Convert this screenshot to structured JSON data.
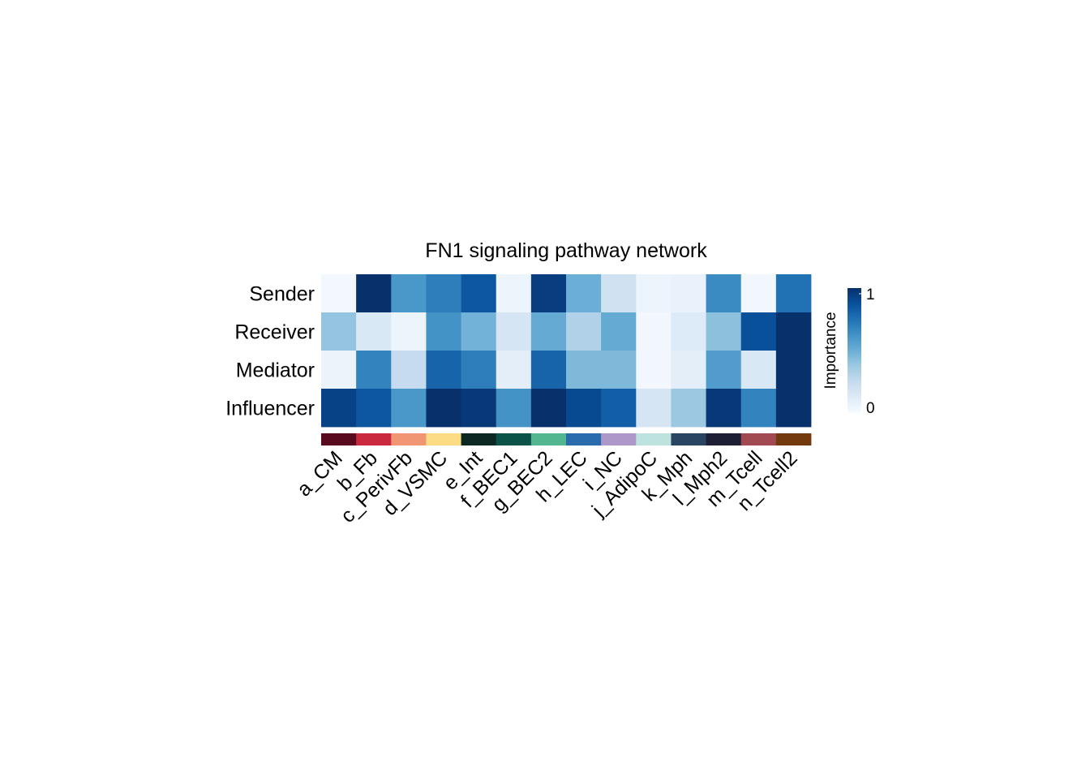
{
  "chart_data": {
    "type": "heatmap",
    "title": "FN1 signaling pathway network",
    "rows": [
      "Sender",
      "Receiver",
      "Mediator",
      "Influencer"
    ],
    "columns": [
      "a_CM",
      "b_Fb",
      "c_PerivFb",
      "d_VSMC",
      "e_Int",
      "f_BEC1",
      "g_BEC2",
      "h_LEC",
      "i_NC",
      "j_AdipoC",
      "k_Mph",
      "l_Mph2",
      "m_Tcell",
      "n_Tcell2"
    ],
    "values": [
      [
        0.02,
        1.0,
        0.6,
        0.7,
        0.85,
        0.05,
        0.95,
        0.5,
        0.2,
        0.05,
        0.07,
        0.65,
        0.03,
        0.75
      ],
      [
        0.4,
        0.15,
        0.05,
        0.62,
        0.48,
        0.17,
        0.52,
        0.32,
        0.52,
        0.03,
        0.13,
        0.42,
        0.88,
        1.0
      ],
      [
        0.06,
        0.68,
        0.25,
        0.8,
        0.7,
        0.1,
        0.8,
        0.45,
        0.45,
        0.03,
        0.1,
        0.58,
        0.15,
        1.0
      ],
      [
        0.93,
        0.85,
        0.6,
        1.0,
        0.97,
        0.62,
        1.0,
        0.9,
        0.82,
        0.17,
        0.38,
        0.97,
        0.68,
        1.0
      ]
    ],
    "group_colors": [
      "#5A0A1F",
      "#C9283E",
      "#F09673",
      "#FCDD83",
      "#0B2922",
      "#0B5348",
      "#52B690",
      "#2A6BAE",
      "#AE98CA",
      "#BEE2DD",
      "#2A4562",
      "#1E1E35",
      "#A24A52",
      "#733A0E"
    ],
    "colorscale": [
      "#F7FBFF",
      "#DEEBF7",
      "#C6DBEF",
      "#9ECAE1",
      "#6BAED6",
      "#4292C6",
      "#2171B5",
      "#08519C",
      "#08306B"
    ],
    "colorbar": {
      "title": "Importance",
      "min_label": "0",
      "max_label": "1",
      "min": 0,
      "max": 1
    }
  }
}
